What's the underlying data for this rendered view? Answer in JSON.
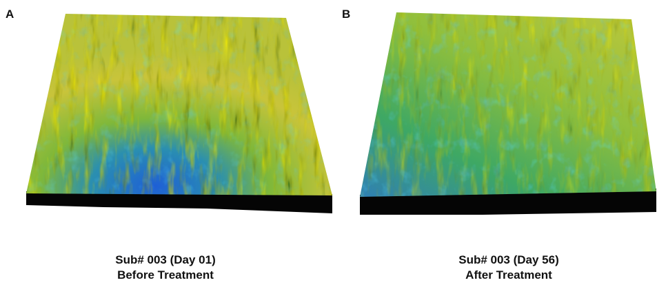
{
  "panels": [
    {
      "label": "A",
      "caption": [
        "Sub# 003 (Day 01)",
        "Before Treatment"
      ]
    },
    {
      "label": "B",
      "caption": [
        "Sub# 003 (Day 56)",
        "After Treatment"
      ]
    }
  ]
}
